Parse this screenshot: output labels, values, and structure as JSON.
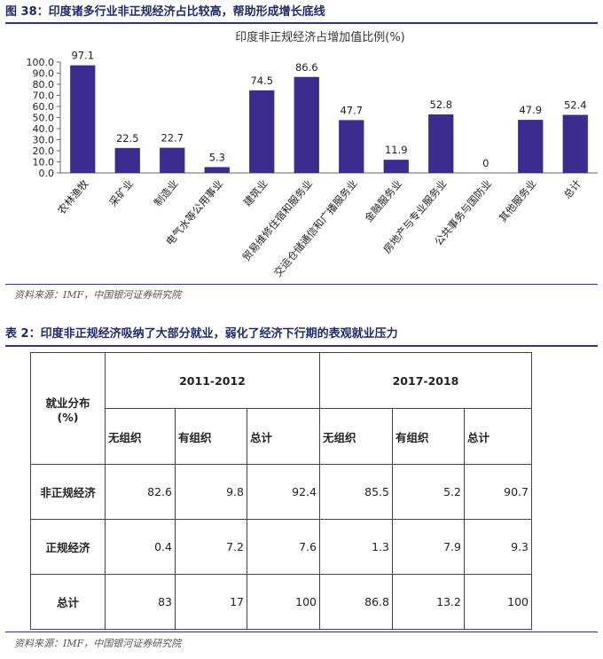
{
  "figure": {
    "title": "图 38：印度诸多行业非正规经济占比较高，帮助形成增长底线",
    "source": "资料来源：IMF，中国银河证券研究院"
  },
  "chart_data": {
    "type": "bar",
    "title": "印度非正规经济占增加值比例(%)",
    "categories": [
      "农林渔牧",
      "采矿业",
      "制造业",
      "电气水等公用事业",
      "建筑业",
      "贸易维修住宿和服务业",
      "交运仓储通信和广播服务业",
      "金融服务业",
      "房地产与专业服务业",
      "公共事务与国防业",
      "其他服务业",
      "总计"
    ],
    "values": [
      97.1,
      22.5,
      22.7,
      5.3,
      74.5,
      86.6,
      47.7,
      11.9,
      52.8,
      0,
      47.9,
      52.4
    ],
    "value_labels": [
      "97.1",
      "22.5",
      "22.7",
      "5.3",
      "74.5",
      "86.6",
      "47.7",
      "11.9",
      "52.8",
      "0",
      "47.9",
      "52.4"
    ],
    "ylim": [
      0,
      100
    ],
    "yticks": [
      "0.0",
      "10.0",
      "20.0",
      "30.0",
      "40.0",
      "50.0",
      "60.0",
      "70.0",
      "80.0",
      "90.0",
      "100.0"
    ],
    "bar_color": "#3b2d8f",
    "grid": false
  },
  "table": {
    "title": "表 2：印度非正规经济吸纳了大部分就业，弱化了经济下行期的表观就业压力",
    "corner_label": "就业分布",
    "corner_unit": "(%)",
    "groups": [
      "2011-2012",
      "2017-2018"
    ],
    "subheaders": [
      "无组织",
      "有组织",
      "总计",
      "无组织",
      "有组织",
      "总计"
    ],
    "rows": [
      {
        "label": "非正规经济",
        "cells": [
          "82.6",
          "9.8",
          "92.4",
          "85.5",
          "5.2",
          "90.7"
        ]
      },
      {
        "label": "正规经济",
        "cells": [
          "0.4",
          "7.2",
          "7.6",
          "1.3",
          "7.9",
          "9.3"
        ]
      },
      {
        "label": "总计",
        "cells": [
          "83",
          "17",
          "100",
          "86.8",
          "13.2",
          "100"
        ]
      }
    ],
    "source": "资料来源：IMF，中国银河证券研究院"
  }
}
